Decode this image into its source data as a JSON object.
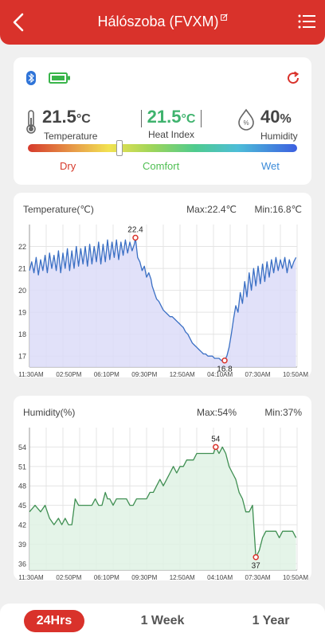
{
  "header": {
    "title": "Hálószoba (FVXM)"
  },
  "status": {
    "temperature": {
      "value": "21.5",
      "unit": "°C",
      "label": "Temperature"
    },
    "heat_index": {
      "value": "21.5",
      "unit": "°C",
      "label": "Heat Index"
    },
    "humidity": {
      "value": "40",
      "unit": "%",
      "label": "Humidity"
    },
    "comfort_marker": 0.34,
    "zones": {
      "dry": "Dry",
      "comfort": "Comfort",
      "wet": "Wet"
    },
    "colors": {
      "accent": "#d9322b",
      "heat_index": "#3fb36e",
      "bluetooth": "#2f74d8",
      "battery": "#39b54a"
    }
  },
  "time_range": {
    "options": [
      "24Hrs",
      "1 Week",
      "1 Year"
    ],
    "selected": "24Hrs"
  },
  "chart_data": [
    {
      "type": "line",
      "title": "Temperature(℃)",
      "max_label": "Max:22.4℃",
      "min_label": "Min:16.8℃",
      "x_ticks": [
        "11:30AM",
        "02:50PM",
        "06:10PM",
        "09:30PM",
        "12:50AM",
        "04:10AM",
        "07:30AM",
        "10:50AM"
      ],
      "y_ticks": [
        17,
        18,
        19,
        20,
        21,
        22
      ],
      "ylim": [
        16.5,
        23.0
      ],
      "max": {
        "x": 9.5,
        "value": 22.4,
        "label": "22.4"
      },
      "min": {
        "x": 17.5,
        "value": 16.8,
        "label": "16.8"
      },
      "line_color": "#3a6fc4",
      "fill_color": "#dcdcf8",
      "x": [
        0,
        0.2,
        0.4,
        0.6,
        0.8,
        1.0,
        1.2,
        1.4,
        1.6,
        1.8,
        2.0,
        2.2,
        2.4,
        2.6,
        2.8,
        3.0,
        3.2,
        3.4,
        3.6,
        3.8,
        4.0,
        4.2,
        4.4,
        4.6,
        4.8,
        5.0,
        5.2,
        5.4,
        5.6,
        5.8,
        6.0,
        6.2,
        6.4,
        6.6,
        6.8,
        7.0,
        7.2,
        7.4,
        7.6,
        7.8,
        8.0,
        8.2,
        8.4,
        8.6,
        8.8,
        9.0,
        9.2,
        9.4,
        9.5,
        9.7,
        9.9,
        10.1,
        10.3,
        10.5,
        10.7,
        10.9,
        11.0,
        11.2,
        11.4,
        11.6,
        11.8,
        12.0,
        12.2,
        12.4,
        12.6,
        12.8,
        13.0,
        13.2,
        13.4,
        13.6,
        13.8,
        14.0,
        14.2,
        14.4,
        14.6,
        14.8,
        15.0,
        15.2,
        15.4,
        15.6,
        15.8,
        16.0,
        16.2,
        16.4,
        16.6,
        16.8,
        17.0,
        17.2,
        17.4,
        17.5,
        17.7,
        17.9,
        18.1,
        18.3,
        18.5,
        18.7,
        18.9,
        19.1,
        19.3,
        19.5,
        19.7,
        19.9,
        20.1,
        20.3,
        20.5,
        20.7,
        20.9,
        21.1,
        21.3,
        21.5,
        21.7,
        21.9,
        22.1,
        22.3,
        22.5,
        22.7,
        22.9,
        23.1,
        23.3,
        23.5,
        23.7,
        23.9
      ],
      "values": [
        20.9,
        21.3,
        20.8,
        21.5,
        20.7,
        21.4,
        20.9,
        21.6,
        20.8,
        21.7,
        21.0,
        21.6,
        20.9,
        21.8,
        20.8,
        21.7,
        21.0,
        21.9,
        20.9,
        21.8,
        21.0,
        22.0,
        21.1,
        21.9,
        21.2,
        22.0,
        21.1,
        22.1,
        21.2,
        22.0,
        21.3,
        22.2,
        21.2,
        22.1,
        21.3,
        22.3,
        21.4,
        22.2,
        21.5,
        22.3,
        21.4,
        22.2,
        21.6,
        22.3,
        21.7,
        22.2,
        21.8,
        22.1,
        22.4,
        21.5,
        21.3,
        20.9,
        21.1,
        20.6,
        20.8,
        20.5,
        20.2,
        19.9,
        19.6,
        19.5,
        19.3,
        19.1,
        19.0,
        18.9,
        18.8,
        18.8,
        18.7,
        18.6,
        18.5,
        18.4,
        18.3,
        18.1,
        18.0,
        17.8,
        17.6,
        17.5,
        17.4,
        17.3,
        17.2,
        17.1,
        17.1,
        17.0,
        17.0,
        17.0,
        16.9,
        16.9,
        16.9,
        16.8,
        16.8,
        16.8,
        17.0,
        17.4,
        18.0,
        18.7,
        19.3,
        19.0,
        19.9,
        19.4,
        20.4,
        19.7,
        20.8,
        20.0,
        21.0,
        20.2,
        21.1,
        20.3,
        21.2,
        20.4,
        21.3,
        20.6,
        21.4,
        20.8,
        21.5,
        20.9,
        21.4,
        21.0,
        21.5,
        20.8,
        21.4,
        21.0,
        21.3,
        21.5
      ]
    },
    {
      "type": "line",
      "title": "Humidity(%)",
      "max_label": "Max:54%",
      "min_label": "Min:37%",
      "x_ticks": [
        "11:30AM",
        "02:50PM",
        "06:10PM",
        "09:30PM",
        "12:50AM",
        "04:10AM",
        "07:30AM",
        "10:50AM"
      ],
      "y_ticks": [
        36,
        39,
        42,
        45,
        48,
        51,
        54
      ],
      "ylim": [
        35,
        57
      ],
      "max": {
        "x": 16.7,
        "value": 54,
        "label": "54"
      },
      "min": {
        "x": 20.3,
        "value": 37,
        "label": "37"
      },
      "line_color": "#3f8f52",
      "fill_color": "#dff2e4",
      "x": [
        0,
        0.5,
        1.0,
        1.4,
        1.8,
        2.2,
        2.6,
        2.9,
        3.2,
        3.5,
        3.8,
        4.1,
        4.4,
        4.7,
        5.0,
        5.3,
        5.6,
        5.9,
        6.2,
        6.5,
        6.8,
        7.0,
        7.2,
        7.5,
        7.8,
        8.1,
        8.4,
        8.7,
        9.0,
        9.3,
        9.6,
        9.9,
        10.2,
        10.5,
        10.8,
        11.1,
        11.4,
        11.7,
        12.0,
        12.3,
        12.6,
        12.9,
        13.2,
        13.5,
        13.8,
        14.1,
        14.4,
        14.7,
        15.0,
        15.3,
        15.6,
        15.9,
        16.2,
        16.5,
        16.7,
        17.0,
        17.3,
        17.6,
        17.9,
        18.2,
        18.5,
        18.8,
        19.1,
        19.4,
        19.7,
        20.0,
        20.3,
        20.6,
        20.9,
        21.2,
        21.5,
        21.8,
        22.1,
        22.4,
        22.7,
        23.0,
        23.3,
        23.6,
        23.9
      ],
      "values": [
        44,
        45,
        44,
        45,
        43,
        42,
        43,
        42,
        43,
        42,
        42,
        46,
        45,
        45,
        45,
        45,
        45,
        46,
        45,
        45,
        47,
        46,
        46,
        45,
        46,
        46,
        46,
        46,
        45,
        45,
        46,
        46,
        46,
        46,
        47,
        47,
        48,
        49,
        48,
        49,
        50,
        51,
        50,
        51,
        51,
        52,
        52,
        52,
        53,
        53,
        53,
        53,
        53,
        53,
        54,
        53,
        54,
        53,
        51,
        50,
        49,
        47,
        46,
        44,
        44,
        45,
        37,
        38,
        40,
        41,
        41,
        41,
        41,
        40,
        41,
        41,
        41,
        41,
        40
      ]
    }
  ]
}
